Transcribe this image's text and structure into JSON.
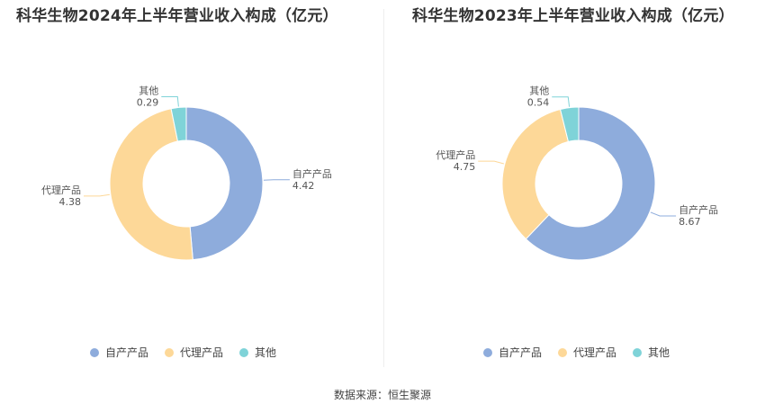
{
  "source": "数据来源：恒生聚源",
  "colors": {
    "自产产品": "#8EACDC",
    "代理产品": "#FDD898",
    "其他": "#7FD3D8"
  },
  "chart_data": [
    {
      "type": "pie",
      "variant": "donut",
      "title": "科华生物2024年上半年营业收入构成（亿元）",
      "unit": "亿元",
      "categories": [
        "自产产品",
        "代理产品",
        "其他"
      ],
      "values": [
        4.42,
        4.38,
        0.29
      ],
      "labels": [
        "4.42",
        "4.38",
        "0.29"
      ],
      "legend": {
        "position": "bottom",
        "items": [
          "自产产品",
          "代理产品",
          "其他"
        ]
      }
    },
    {
      "type": "pie",
      "variant": "donut",
      "title": "科华生物2023年上半年营业收入构成（亿元）",
      "unit": "亿元",
      "categories": [
        "自产产品",
        "代理产品",
        "其他"
      ],
      "values": [
        8.67,
        4.75,
        0.54
      ],
      "labels": [
        "8.67",
        "4.75",
        "0.54"
      ],
      "legend": {
        "position": "bottom",
        "items": [
          "自产产品",
          "代理产品",
          "其他"
        ]
      }
    }
  ]
}
